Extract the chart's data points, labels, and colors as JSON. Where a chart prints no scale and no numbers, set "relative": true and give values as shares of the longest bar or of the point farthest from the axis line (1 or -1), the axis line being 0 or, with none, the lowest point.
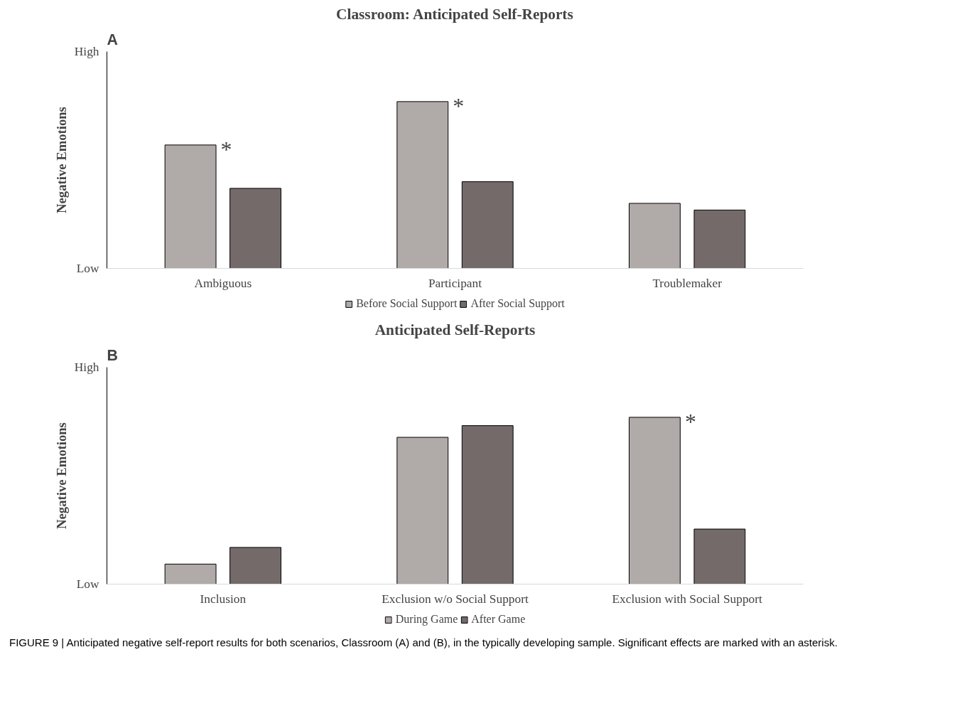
{
  "chart_data": [
    {
      "type": "bar",
      "title": "Classroom: Anticipated Self-Reports",
      "ylabel": "Negative Emotions",
      "categories": [
        "Ambiguous",
        "Participant",
        "Troublemaker"
      ],
      "relative": true,
      "series": [
        {
          "name": "Before Social Support",
          "color": "#b0aaa9",
          "values": [
            0.74,
            1,
            0.39
          ]
        },
        {
          "name": "After Social Support",
          "color": "#746a6a",
          "values": [
            0.48,
            0.52,
            0.35
          ]
        }
      ],
      "legend": "bottom",
      "annotations": [
        "A",
        "Low",
        "High",
        "*",
        "*"
      ]
    },
    {
      "type": "bar",
      "title": "Anticipated Self-Reports",
      "ylabel": "Negative Emotions",
      "categories": [
        "Inclusion",
        "Exclusion w/o Social Support",
        "Exclusion with Social Support"
      ],
      "relative": true,
      "series": [
        {
          "name": "During Game",
          "color": "#b0aaa9",
          "values": [
            0.12,
            0.88,
            1
          ]
        },
        {
          "name": "After Game",
          "color": "#746a6a",
          "values": [
            0.22,
            0.95,
            0.33
          ]
        }
      ],
      "legend": "bottom",
      "annotations": [
        "B",
        "Low",
        "High",
        "*",
        "FIGURE 9 | Anticipated negative self-report results for both scenarios, Classroom (A) and (B), in the typically developing sample. Significant effects are marked with an asterisk."
      ]
    }
  ]
}
